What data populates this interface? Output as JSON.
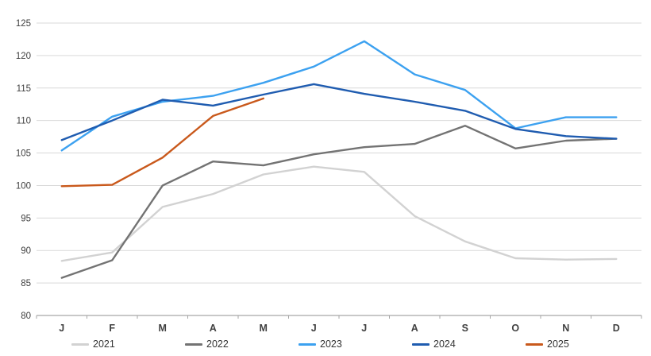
{
  "chart_data": {
    "type": "line",
    "title": "",
    "categories": [
      "J",
      "F",
      "M",
      "A",
      "M",
      "J",
      "J",
      "A",
      "S",
      "O",
      "N",
      "D"
    ],
    "y_ticks": [
      80,
      85,
      90,
      95,
      100,
      105,
      110,
      115,
      120,
      125
    ],
    "ylim": [
      80,
      125
    ],
    "grid": true,
    "legend_position": "bottom",
    "colors": {
      "gridline": "#d9d9d9",
      "axis": "#a6a6a6",
      "tick_label": "#404040"
    },
    "series": [
      {
        "name": "2021",
        "color": "#d2d2d2",
        "values": [
          88.4,
          89.7,
          96.7,
          98.7,
          101.7,
          102.9,
          102.1,
          95.3,
          91.4,
          88.8,
          88.6,
          88.7
        ]
      },
      {
        "name": "2022",
        "color": "#737373",
        "values": [
          85.8,
          88.5,
          100.0,
          103.7,
          103.1,
          104.8,
          105.9,
          106.4,
          109.2,
          105.7,
          106.9,
          107.2
        ]
      },
      {
        "name": "2023",
        "color": "#3ca1f0",
        "values": [
          105.4,
          110.6,
          112.9,
          113.8,
          115.8,
          118.3,
          122.2,
          117.1,
          114.7,
          108.8,
          110.5,
          110.5
        ]
      },
      {
        "name": "2024",
        "color": "#1f5cb0",
        "values": [
          107.0,
          110.0,
          113.2,
          112.3,
          114.0,
          115.6,
          114.1,
          112.9,
          111.5,
          108.7,
          107.6,
          107.2
        ]
      },
      {
        "name": "2025",
        "color": "#c9591c",
        "values": [
          99.9,
          100.1,
          104.3,
          110.7,
          113.4,
          null,
          null,
          null,
          null,
          null,
          null,
          null
        ]
      }
    ]
  }
}
